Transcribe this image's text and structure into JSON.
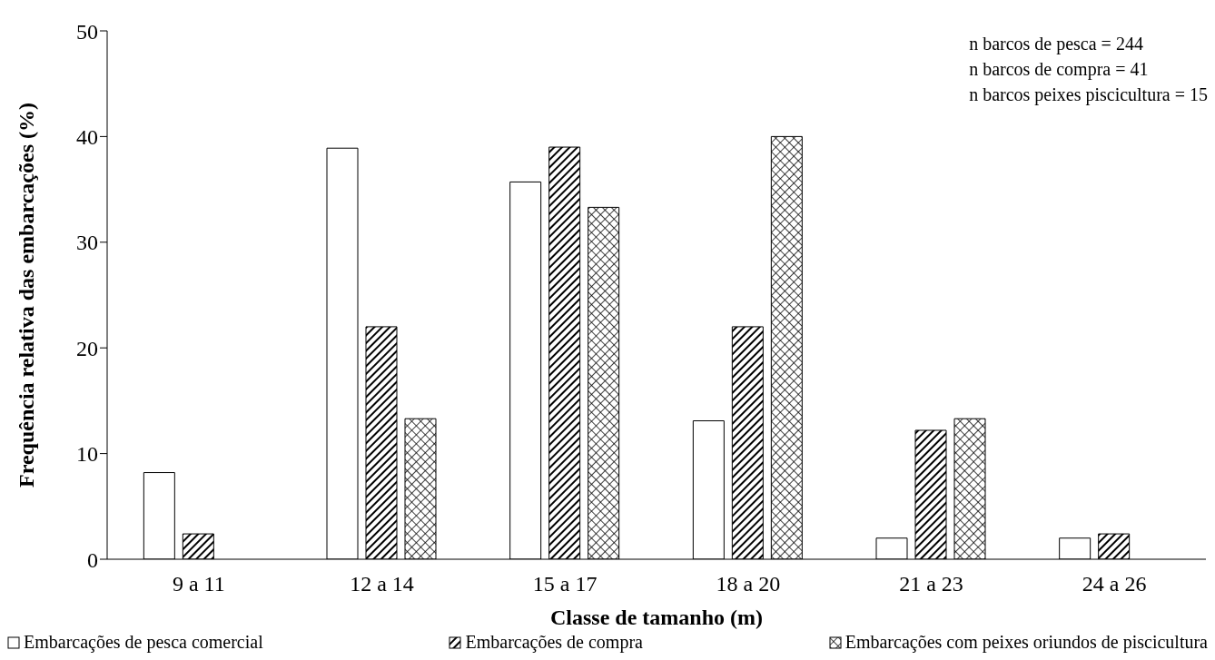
{
  "chart_data": {
    "type": "bar",
    "xlabel": "Classe de tamanho (m)",
    "ylabel": "Frequência relativa das embarcações (%)",
    "categories": [
      "9 a 11",
      "12 a 14",
      "15 a 17",
      "18 a 20",
      "21 a 23",
      "24 a 26"
    ],
    "series": [
      {
        "name": "Embarcações de pesca comercial",
        "color": "#ffffff",
        "values": [
          8.2,
          38.9,
          35.7,
          13.1,
          2.0,
          2.0
        ]
      },
      {
        "name": "Embarcações de compra",
        "color": "#000000",
        "values": [
          2.4,
          22.0,
          39.0,
          22.0,
          12.2,
          2.4
        ]
      },
      {
        "name": "Embarcações com peixes oriundos de piscicultura",
        "color": "#000000",
        "values": [
          0,
          13.3,
          33.3,
          40.0,
          13.3,
          0
        ]
      }
    ],
    "ylim": [
      0,
      50
    ],
    "yticks": [
      0,
      10,
      20,
      30,
      40,
      50
    ],
    "grid": false,
    "legend": "bottom",
    "annotations": [
      "n barcos de pesca = 244",
      "n barcos de compra = 41",
      "n barcos peixes piscicultura = 15"
    ]
  }
}
